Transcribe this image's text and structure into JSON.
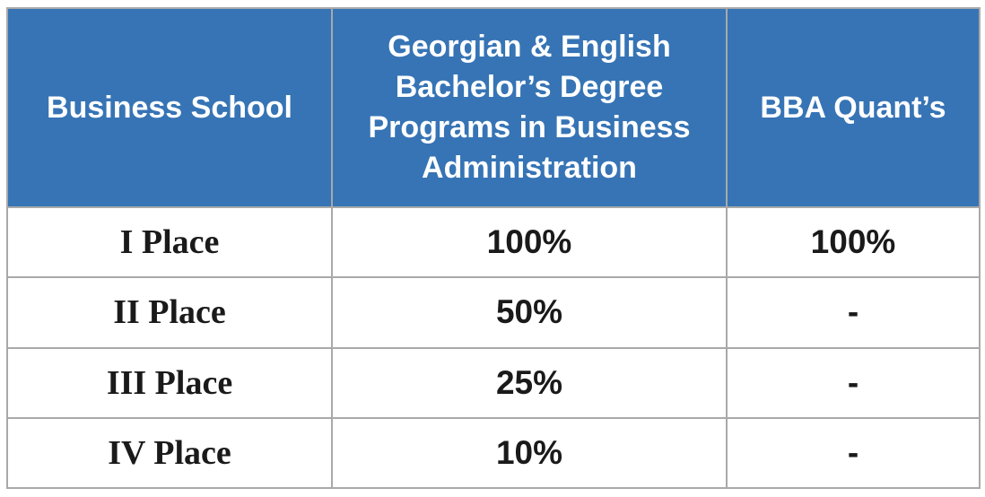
{
  "table": {
    "header": [
      "Business School",
      "Georgian & English Bachelor’s Degree Programs in Business Administration",
      "BBA Quant’s"
    ],
    "rows": [
      [
        "I Place",
        "100%",
        "100%"
      ],
      [
        "II Place",
        "50%",
        "-"
      ],
      [
        "III Place",
        "25%",
        "-"
      ],
      [
        "IV Place",
        "10%",
        "-"
      ]
    ]
  }
}
